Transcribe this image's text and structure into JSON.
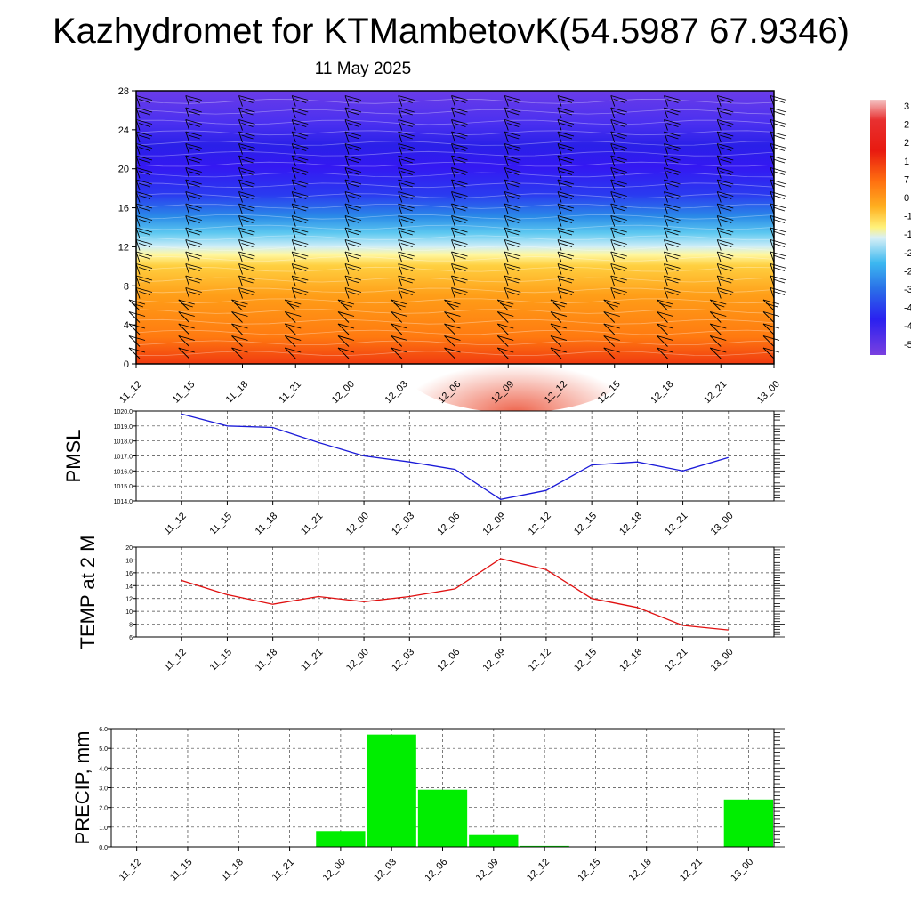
{
  "title": "Kazhydromet for KTMambetovK(54.5987 67.9346)",
  "date": "11 May 2025",
  "chart_data": [
    {
      "type": "heatmap",
      "name": "vertical cross-section",
      "x": [
        "11_12",
        "11_15",
        "11_18",
        "11_21",
        "12_00",
        "12_03",
        "12_06",
        "12_09",
        "12_12",
        "12_15",
        "12_18",
        "12_21",
        "13_00"
      ],
      "yticks": [
        "0",
        "4",
        "8",
        "12",
        "16",
        "20",
        "24",
        "28"
      ],
      "ylim": [
        0,
        28
      ],
      "colorbar_labels": [
        "3",
        "2",
        "2",
        "1",
        "7",
        "0",
        "-1",
        "-1",
        "-2",
        "-2",
        "-3",
        "-4",
        "-4",
        "-5"
      ],
      "colors": {
        "low": "#6a2fe0",
        "mid_blue": "#2a2af0",
        "cyan": "#39b6ee",
        "yellow": "#fff08a",
        "orange": "#ff9a10",
        "red": "#f04010"
      },
      "wind_barbs": true
    },
    {
      "type": "line",
      "ylabel": "PMSL",
      "x": [
        "11_12",
        "11_15",
        "11_18",
        "11_21",
        "12_00",
        "12_03",
        "12_06",
        "12_09",
        "12_12",
        "12_15",
        "12_18",
        "12_21",
        "13_00"
      ],
      "values": [
        1019.8,
        1019.0,
        1018.9,
        1017.9,
        1017.0,
        1016.6,
        1016.1,
        1014.1,
        1014.7,
        1016.4,
        1016.6,
        1016.0,
        1016.9
      ],
      "yticks": [
        "1014.0",
        "1015.0",
        "1016.0",
        "1017.0",
        "1018.0",
        "1019.0",
        "1020.0"
      ],
      "ylim": [
        1014,
        1020
      ],
      "color": "#1a1ad8",
      "grid": true
    },
    {
      "type": "line",
      "ylabel": "TEMP at 2 M",
      "x": [
        "11_12",
        "11_15",
        "11_18",
        "11_21",
        "12_00",
        "12_03",
        "12_06",
        "12_09",
        "12_12",
        "12_15",
        "12_18",
        "12_21",
        "13_00"
      ],
      "values": [
        14.8,
        12.6,
        11.1,
        12.3,
        11.5,
        12.3,
        13.5,
        18.2,
        16.5,
        12.0,
        10.6,
        7.8,
        7.1
      ],
      "yticks": [
        "6",
        "8",
        "10",
        "12",
        "14",
        "16",
        "18",
        "20"
      ],
      "ylim": [
        6,
        20
      ],
      "color": "#e01010",
      "grid": true
    },
    {
      "type": "bar",
      "ylabel": "PRECIP, mm",
      "x": [
        "11_12",
        "11_15",
        "11_18",
        "11_21",
        "12_00",
        "12_03",
        "12_06",
        "12_09",
        "12_12",
        "12_15",
        "12_18",
        "12_21",
        "13_00"
      ],
      "values": [
        0,
        0,
        0,
        0,
        0.8,
        5.7,
        2.9,
        0.6,
        0.05,
        0,
        0,
        0,
        2.4
      ],
      "yticks": [
        "0.0",
        "1.0",
        "2.0",
        "3.0",
        "4.0",
        "5.0",
        "6.0"
      ],
      "ylim": [
        0,
        6
      ],
      "color": "#00ee00",
      "grid": true
    }
  ]
}
